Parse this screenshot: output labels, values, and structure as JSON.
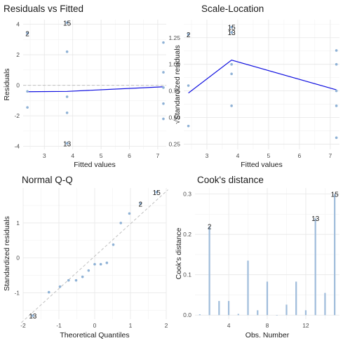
{
  "colors": {
    "point": "#8fb2d6",
    "smooth_line": "#1010e0",
    "reference_line": "#c0c0c0",
    "cook_bar": "#9fbcdb",
    "grid_major": "#e6e6e6",
    "grid_minor": "#f2f2f2",
    "text": "#1a1a1a",
    "tick_text": "#4d4d4d"
  },
  "chart_data": [
    {
      "id": "rvf",
      "type": "scatter",
      "title": "Residuals vs Fitted",
      "xlabel": "Fitted values",
      "ylabel": "Residuals",
      "xlim": [
        2.25,
        7.3
      ],
      "ylim": [
        -4.2,
        4.3
      ],
      "xticks": [
        3,
        4,
        5,
        6,
        7
      ],
      "yticks": [
        -4,
        -2,
        0,
        2,
        4
      ],
      "grid": true,
      "reference_hline": 0,
      "points": [
        {
          "x": 2.4,
          "y": 3.4,
          "label": "2"
        },
        {
          "x": 2.4,
          "y": -0.4
        },
        {
          "x": 2.4,
          "y": -1.45
        },
        {
          "x": 3.8,
          "y": 4.1,
          "label": "15"
        },
        {
          "x": 3.8,
          "y": 2.2
        },
        {
          "x": 3.8,
          "y": -0.75
        },
        {
          "x": 3.8,
          "y": -1.8
        },
        {
          "x": 3.8,
          "y": -3.8,
          "label": "13"
        },
        {
          "x": 7.2,
          "y": 2.8
        },
        {
          "x": 7.2,
          "y": 0.85
        },
        {
          "x": 7.2,
          "y": -0.15
        },
        {
          "x": 7.2,
          "y": -1.2
        },
        {
          "x": 7.2,
          "y": -2.2
        }
      ],
      "smooth": [
        {
          "x": 2.4,
          "y": -0.42
        },
        {
          "x": 3.8,
          "y": -0.4
        },
        {
          "x": 7.2,
          "y": -0.1
        }
      ]
    },
    {
      "id": "sl",
      "type": "scatter",
      "title": "Scale-Location",
      "xlabel": "Fitted values",
      "ylabel": "√Standardized residuals",
      "xlim": [
        2.25,
        7.3
      ],
      "ylim": [
        0.2,
        1.42
      ],
      "xticks": [
        3,
        4,
        5,
        6,
        7
      ],
      "yticks": [
        0.25,
        0.5,
        0.75,
        1.0,
        1.25
      ],
      "ytick_labels": [
        "0.25",
        "0.50",
        "0.75",
        "1.00",
        "1.25"
      ],
      "grid": true,
      "points": [
        {
          "x": 2.4,
          "y": 1.28,
          "label": "2"
        },
        {
          "x": 2.4,
          "y": 0.8
        },
        {
          "x": 2.4,
          "y": 0.42
        },
        {
          "x": 3.8,
          "y": 1.35,
          "label": "15"
        },
        {
          "x": 3.8,
          "y": 1.3,
          "label": "13"
        },
        {
          "x": 3.8,
          "y": 1.0
        },
        {
          "x": 3.8,
          "y": 0.91
        },
        {
          "x": 3.8,
          "y": 0.61
        },
        {
          "x": 7.2,
          "y": 1.13
        },
        {
          "x": 7.2,
          "y": 1.0
        },
        {
          "x": 7.2,
          "y": 0.75
        },
        {
          "x": 7.2,
          "y": 0.61
        },
        {
          "x": 7.2,
          "y": 0.31
        }
      ],
      "smooth": [
        {
          "x": 2.4,
          "y": 0.73
        },
        {
          "x": 3.8,
          "y": 1.04
        },
        {
          "x": 7.2,
          "y": 0.76
        }
      ]
    },
    {
      "id": "qq",
      "type": "scatter",
      "title": "Normal Q-Q",
      "xlabel": "Theoretical Quantiles",
      "ylabel": "Standardized residuals",
      "xlim": [
        -2,
        2
      ],
      "ylim": [
        -1.75,
        2.0
      ],
      "xticks": [
        -2,
        -1,
        0,
        1,
        2
      ],
      "yticks": [
        -1,
        0,
        1
      ],
      "grid": true,
      "reference_line": [
        [
          -2.05,
          -1.85
        ],
        [
          2.05,
          1.95
        ]
      ],
      "points": [
        {
          "x": -1.73,
          "y": -1.65,
          "label": "13"
        },
        {
          "x": -1.28,
          "y": -0.98
        },
        {
          "x": -0.97,
          "y": -0.82
        },
        {
          "x": -0.73,
          "y": -0.64
        },
        {
          "x": -0.52,
          "y": -0.64
        },
        {
          "x": -0.34,
          "y": -0.54
        },
        {
          "x": -0.17,
          "y": -0.36
        },
        {
          "x": 0.0,
          "y": -0.18
        },
        {
          "x": 0.17,
          "y": -0.18
        },
        {
          "x": 0.34,
          "y": -0.14
        },
        {
          "x": 0.52,
          "y": 0.38
        },
        {
          "x": 0.73,
          "y": 1.0
        },
        {
          "x": 0.97,
          "y": 1.27
        },
        {
          "x": 1.28,
          "y": 1.55,
          "label": "2"
        },
        {
          "x": 1.73,
          "y": 1.88,
          "label": "15"
        }
      ]
    },
    {
      "id": "cook",
      "type": "bar",
      "title": "Cook's distance",
      "xlabel": "Obs. Number",
      "ylabel": "Cook's distance",
      "xlim": [
        0.5,
        15.5
      ],
      "ylim": [
        -0.01,
        0.315
      ],
      "xticks": [
        4,
        8,
        12
      ],
      "yticks": [
        0.0,
        0.1,
        0.2,
        0.3
      ],
      "ytick_labels": [
        "0.0",
        "0.1",
        "0.2",
        "0.3"
      ],
      "grid": true,
      "categories": [
        1,
        2,
        3,
        4,
        5,
        6,
        7,
        8,
        9,
        10,
        11,
        12,
        13,
        14,
        15
      ],
      "values": [
        0.002,
        0.22,
        0.035,
        0.035,
        0.003,
        0.135,
        0.012,
        0.083,
        0.0,
        0.026,
        0.083,
        0.012,
        0.24,
        0.055,
        0.3
      ],
      "bar_labels": {
        "2": "2",
        "13": "13",
        "15": "15"
      }
    }
  ]
}
